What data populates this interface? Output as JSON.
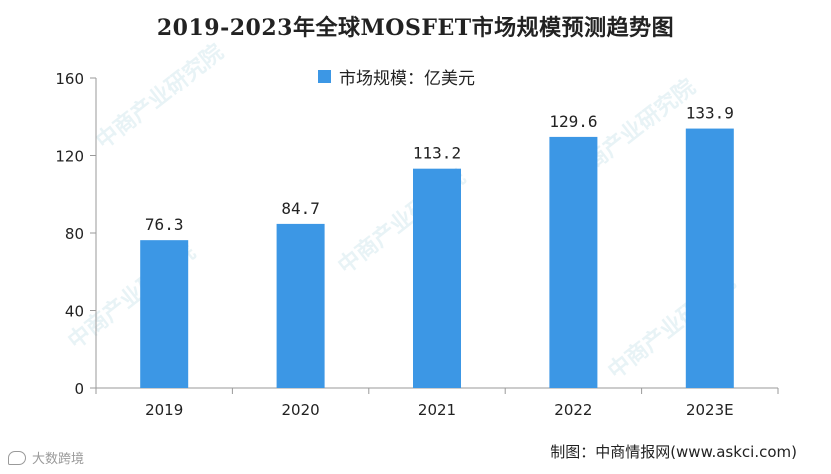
{
  "title": "2019-2023年全球MOSFET市场规模预测趋势图",
  "legend": {
    "label": "市场规模：亿美元"
  },
  "source": "制图：中商情报网(www.askci.com)",
  "credit": "大数跨境",
  "watermark": "中商产业研究院",
  "colors": {
    "bar": "#3c97e5",
    "axis": "#9a9a9a",
    "text": "#222222"
  },
  "chart_data": {
    "type": "bar",
    "title": "2019-2023年全球MOSFET市场规模预测趋势图",
    "categories": [
      "2019",
      "2020",
      "2021",
      "2022",
      "2023E"
    ],
    "series": [
      {
        "name": "市场规模：亿美元",
        "values": [
          76.3,
          84.7,
          113.2,
          129.6,
          133.9
        ]
      }
    ],
    "data_labels": [
      "76.3",
      "84.7",
      "113.2",
      "129.6",
      "133.9"
    ],
    "y_ticks": [
      0,
      40,
      80,
      120,
      160
    ],
    "ylim": [
      0,
      160
    ],
    "xlabel": "",
    "ylabel": "",
    "grid": false,
    "legend_position": "top-center"
  }
}
